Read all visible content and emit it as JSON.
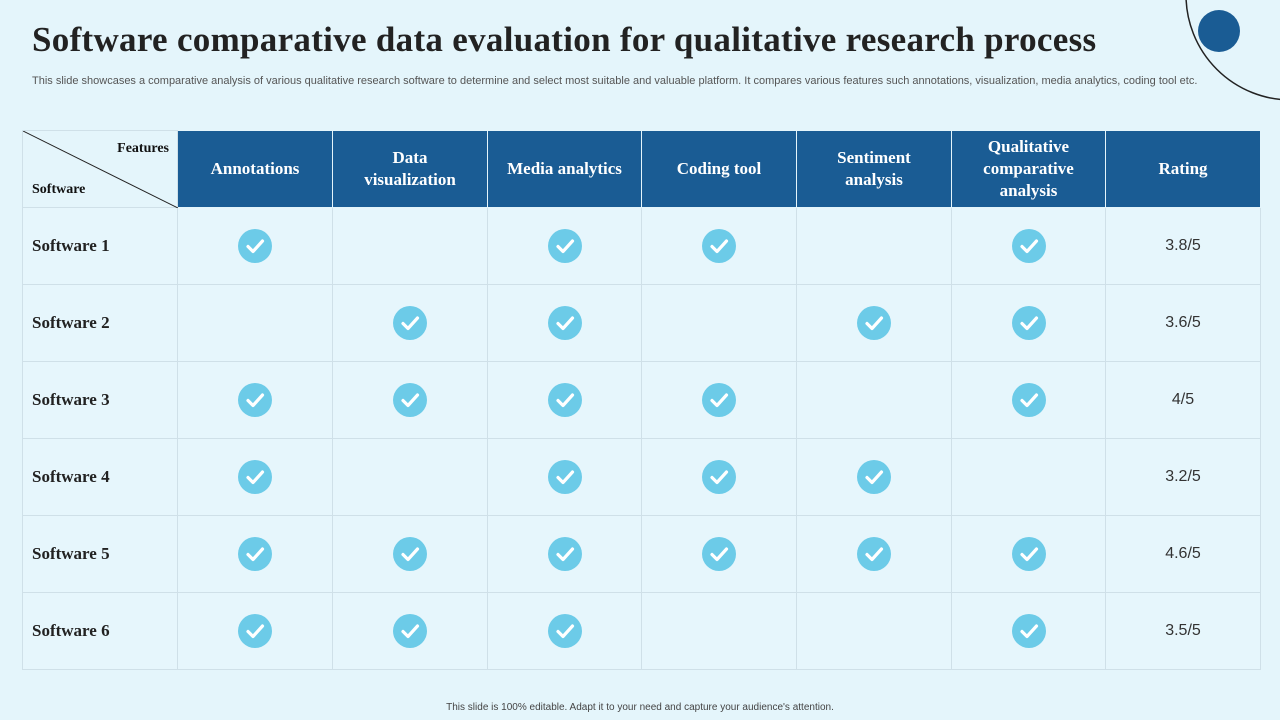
{
  "title": "Software comparative data evaluation for qualitative research process",
  "description": "This slide showcases a comparative analysis of various qualitative research software to determine and select most suitable and valuable platform. It compares various features such annotations, visualization, media analytics, coding tool etc.",
  "table": {
    "corner_features": "Features",
    "corner_software": "Software",
    "columns": [
      "Annotations",
      "Data visualization",
      "Media analytics",
      "Coding tool",
      "Sentiment analysis",
      "Qualitative comparative analysis",
      "Rating"
    ],
    "rows": [
      {
        "name": "Software 1",
        "checks": [
          true,
          false,
          true,
          true,
          false,
          true
        ],
        "rating": "3.8/5"
      },
      {
        "name": "Software 2",
        "checks": [
          false,
          true,
          true,
          false,
          true,
          true
        ],
        "rating": "3.6/5"
      },
      {
        "name": "Software 3",
        "checks": [
          true,
          true,
          true,
          true,
          false,
          true
        ],
        "rating": "4/5"
      },
      {
        "name": "Software 4",
        "checks": [
          true,
          false,
          true,
          true,
          true,
          false
        ],
        "rating": "3.2/5"
      },
      {
        "name": "Software 5",
        "checks": [
          true,
          true,
          true,
          true,
          true,
          true
        ],
        "rating": "4.6/5"
      },
      {
        "name": "Software 6",
        "checks": [
          true,
          true,
          true,
          false,
          false,
          true
        ],
        "rating": "3.5/5"
      }
    ]
  },
  "icons": {
    "check": "check-circle-icon"
  },
  "colors": {
    "header": "#1a5c94",
    "check": "#6ccbe8",
    "background": "#e4f5fb"
  },
  "footer": "This slide is 100% editable. Adapt it to your need and capture your audience's attention."
}
